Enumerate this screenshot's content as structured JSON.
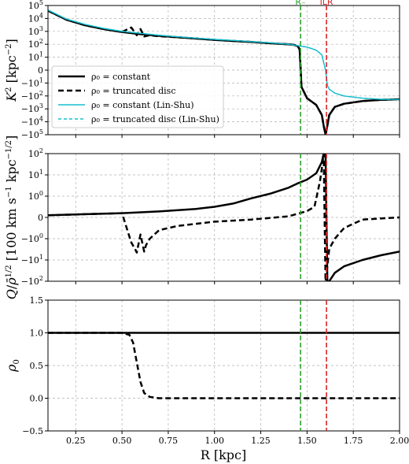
{
  "chart_data": [
    {
      "type": "line",
      "ylabel": "K^2 [kpc^-2]",
      "xlim": [
        0.1,
        2.0
      ],
      "yscale": "symlog",
      "y_ticks": [
        "10^5",
        "10^4",
        "10^3",
        "10^2",
        "10^1",
        "0",
        "−10^1",
        "−10^2",
        "−10^3",
        "−10^4",
        "−10^5"
      ],
      "grid": true,
      "legend": "left",
      "series": [
        {
          "name": "ρ0 = constant",
          "style": "solid-black",
          "x": [
            0.1,
            0.2,
            0.3,
            0.4,
            0.5,
            0.6,
            0.7,
            0.8,
            0.9,
            1.0,
            1.1,
            1.2,
            1.3,
            1.4,
            1.43,
            1.45,
            1.46,
            1.47,
            1.5,
            1.55,
            1.58,
            1.59,
            1.6,
            1.61,
            1.62,
            1.65,
            1.7,
            1.8,
            1.9,
            2.0
          ],
          "y": [
            40000,
            8000,
            3000,
            1500,
            900,
            600,
            450,
            350,
            280,
            220,
            180,
            150,
            120,
            100,
            90,
            70,
            40,
            -20,
            -150,
            -500,
            -3000,
            -20000,
            -100000,
            -20000,
            -3000,
            -700,
            -400,
            -250,
            -200,
            -180
          ]
        },
        {
          "name": "ρ0 = truncated disc",
          "style": "dashed-black",
          "x": [
            0.1,
            0.2,
            0.3,
            0.4,
            0.5,
            0.55,
            0.58,
            0.6,
            0.62,
            0.65,
            0.7,
            0.8,
            0.9,
            1.0,
            1.1,
            1.2,
            1.3,
            1.4,
            1.43,
            1.45,
            1.46,
            1.47,
            1.5,
            1.55,
            1.58,
            1.59,
            1.6,
            1.61,
            1.62,
            1.65,
            1.7,
            1.8,
            1.9,
            2.0
          ],
          "y": [
            40000,
            8000,
            3000,
            1500,
            900,
            2000,
            500,
            1500,
            400,
            500,
            420,
            350,
            280,
            220,
            180,
            150,
            120,
            100,
            90,
            70,
            40,
            -20,
            -150,
            -500,
            -3000,
            -20000,
            -100000,
            -20000,
            -3000,
            -700,
            -400,
            -250,
            -200,
            -180
          ]
        },
        {
          "name": "ρ0 = constant (Lin-Shu)",
          "style": "solid-cyan",
          "x": [
            0.1,
            0.2,
            0.3,
            0.4,
            0.5,
            0.6,
            0.7,
            0.8,
            0.9,
            1.0,
            1.1,
            1.2,
            1.3,
            1.4,
            1.5,
            1.55,
            1.58,
            1.6,
            1.61,
            1.62,
            1.65,
            1.7,
            1.8,
            1.9,
            2.0
          ],
          "y": [
            45000,
            9000,
            3500,
            1700,
            1000,
            700,
            500,
            380,
            300,
            240,
            200,
            160,
            130,
            100,
            60,
            35,
            15,
            0,
            -15,
            -30,
            -60,
            -100,
            -150,
            -180,
            -190
          ]
        },
        {
          "name": "ρ0 = truncated disc (Lin-Shu)",
          "style": "dashed-cyan",
          "x": [
            0.1,
            0.2,
            0.3,
            0.4,
            0.5,
            0.6,
            0.7,
            0.8,
            0.9,
            1.0,
            1.1,
            1.2,
            1.3,
            1.4,
            1.5,
            1.55,
            1.58,
            1.6,
            1.61,
            1.62,
            1.65,
            1.7,
            1.8,
            1.9,
            2.0
          ],
          "y": [
            45000,
            9000,
            3500,
            1700,
            1000,
            700,
            500,
            380,
            300,
            240,
            200,
            160,
            130,
            100,
            60,
            35,
            15,
            0,
            -15,
            -30,
            -60,
            -100,
            -150,
            -180,
            -190
          ]
        }
      ]
    },
    {
      "type": "line",
      "ylabel": "Q/ρ̄^1/2 [100 km s^-1 kpc^-1/2]",
      "xlim": [
        0.1,
        2.0
      ],
      "yscale": "symlog",
      "y_ticks": [
        "10^2",
        "10^1",
        "10^0",
        "0",
        "−10^0",
        "−10^1",
        "−10^2"
      ],
      "grid": true,
      "series": [
        {
          "name": "ρ0 = constant",
          "style": "solid-black",
          "x": [
            0.1,
            0.3,
            0.5,
            0.7,
            0.9,
            1.0,
            1.1,
            1.2,
            1.3,
            1.4,
            1.45,
            1.5,
            1.55,
            1.58,
            1.59,
            1.6,
            1.61,
            1.62,
            1.65,
            1.7,
            1.8,
            1.9,
            2.0
          ],
          "y": [
            0.1,
            0.15,
            0.2,
            0.28,
            0.4,
            0.5,
            0.65,
            0.9,
            1.3,
            2.5,
            4,
            6,
            12,
            40,
            100,
            100,
            -100,
            -100,
            -40,
            -20,
            -10,
            -6,
            -4
          ]
        },
        {
          "name": "ρ0 = truncated disc",
          "style": "dashed-black",
          "x": [
            0.1,
            0.3,
            0.5,
            0.55,
            0.57,
            0.58,
            0.6,
            0.62,
            0.63,
            0.65,
            0.7,
            0.8,
            1.0,
            1.2,
            1.4,
            1.5,
            1.54,
            1.56,
            1.57,
            1.58,
            1.59,
            1.6,
            1.61,
            1.62,
            1.65,
            1.7,
            1.8,
            2.0
          ],
          "y": [
            0.1,
            0.15,
            0.2,
            -1.5,
            -3,
            -4.5,
            -0.8,
            -4,
            -2,
            -1,
            -0.6,
            -0.4,
            -0.2,
            -0.1,
            0.05,
            0.3,
            0.5,
            2,
            5,
            20,
            100,
            -100,
            -20,
            -3,
            -1,
            -0.5,
            -0.1,
            0.0
          ]
        }
      ]
    },
    {
      "type": "line",
      "ylabel": "ρ0",
      "xlabel": "R [kpc]",
      "xlim": [
        0.1,
        2.0
      ],
      "ylim": [
        -0.5,
        1.5
      ],
      "x_ticks": [
        "0.25",
        "0.50",
        "0.75",
        "1.00",
        "1.25",
        "1.50",
        "1.75",
        "2.00"
      ],
      "y_ticks": [
        "−0.5",
        "0.0",
        "0.5",
        "1.0",
        "1.5"
      ],
      "grid": true,
      "series": [
        {
          "name": "ρ0 = constant",
          "style": "solid-black",
          "x": [
            0.1,
            2.0
          ],
          "y": [
            1.0,
            1.0
          ]
        },
        {
          "name": "ρ0 = truncated disc",
          "style": "dashed-black",
          "x": [
            0.1,
            0.5,
            0.54,
            0.56,
            0.58,
            0.6,
            0.62,
            0.65,
            0.7,
            2.0
          ],
          "y": [
            1.0,
            1.0,
            0.97,
            0.85,
            0.55,
            0.25,
            0.08,
            0.02,
            0.0,
            0.0
          ]
        }
      ]
    }
  ],
  "markers": [
    {
      "label": "R₋",
      "x": 1.465,
      "color": "#2ca02c"
    },
    {
      "label": "ILR",
      "x": 1.605,
      "color": "#d62728"
    }
  ],
  "legend_entries": [
    "ρ₀ = constant",
    "ρ₀ = truncated disc",
    "ρ₀ = constant (Lin-Shu)",
    "ρ₀ = truncated disc (Lin-Shu)"
  ]
}
